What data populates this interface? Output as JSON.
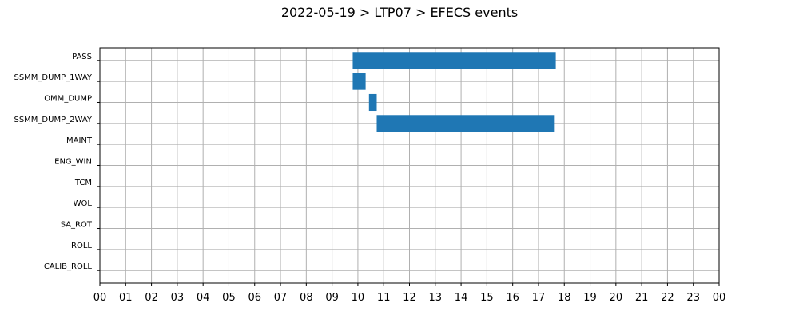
{
  "chart_data": {
    "type": "bar",
    "orientation": "horizontal-timeline",
    "title": "2022-05-19 > LTP07 > EFECS events",
    "xlabel": "",
    "ylabel": "",
    "x_unit": "hour",
    "xlim": [
      0,
      24
    ],
    "x_ticks": [
      0,
      1,
      2,
      3,
      4,
      5,
      6,
      7,
      8,
      9,
      10,
      11,
      12,
      13,
      14,
      15,
      16,
      17,
      18,
      19,
      20,
      21,
      22,
      23,
      24
    ],
    "x_tick_labels": [
      "00",
      "01",
      "02",
      "03",
      "04",
      "05",
      "06",
      "07",
      "08",
      "09",
      "10",
      "11",
      "12",
      "13",
      "14",
      "15",
      "16",
      "17",
      "18",
      "19",
      "20",
      "21",
      "22",
      "23",
      "00"
    ],
    "categories": [
      "PASS",
      "SSMM_DUMP_1WAY",
      "OMM_DUMP",
      "SSMM_DUMP_2WAY",
      "MAINT",
      "ENG_WIN",
      "TCM",
      "WOL",
      "SA_ROT",
      "ROLL",
      "CALIB_ROLL"
    ],
    "events": [
      {
        "category": "PASS",
        "start": 9.8,
        "end": 17.67
      },
      {
        "category": "SSMM_DUMP_1WAY",
        "start": 9.8,
        "end": 10.3
      },
      {
        "category": "OMM_DUMP",
        "start": 10.43,
        "end": 10.73
      },
      {
        "category": "SSMM_DUMP_2WAY",
        "start": 10.73,
        "end": 17.6
      }
    ],
    "grid": true,
    "legend": "none",
    "bar_color": "#1f77b4"
  }
}
